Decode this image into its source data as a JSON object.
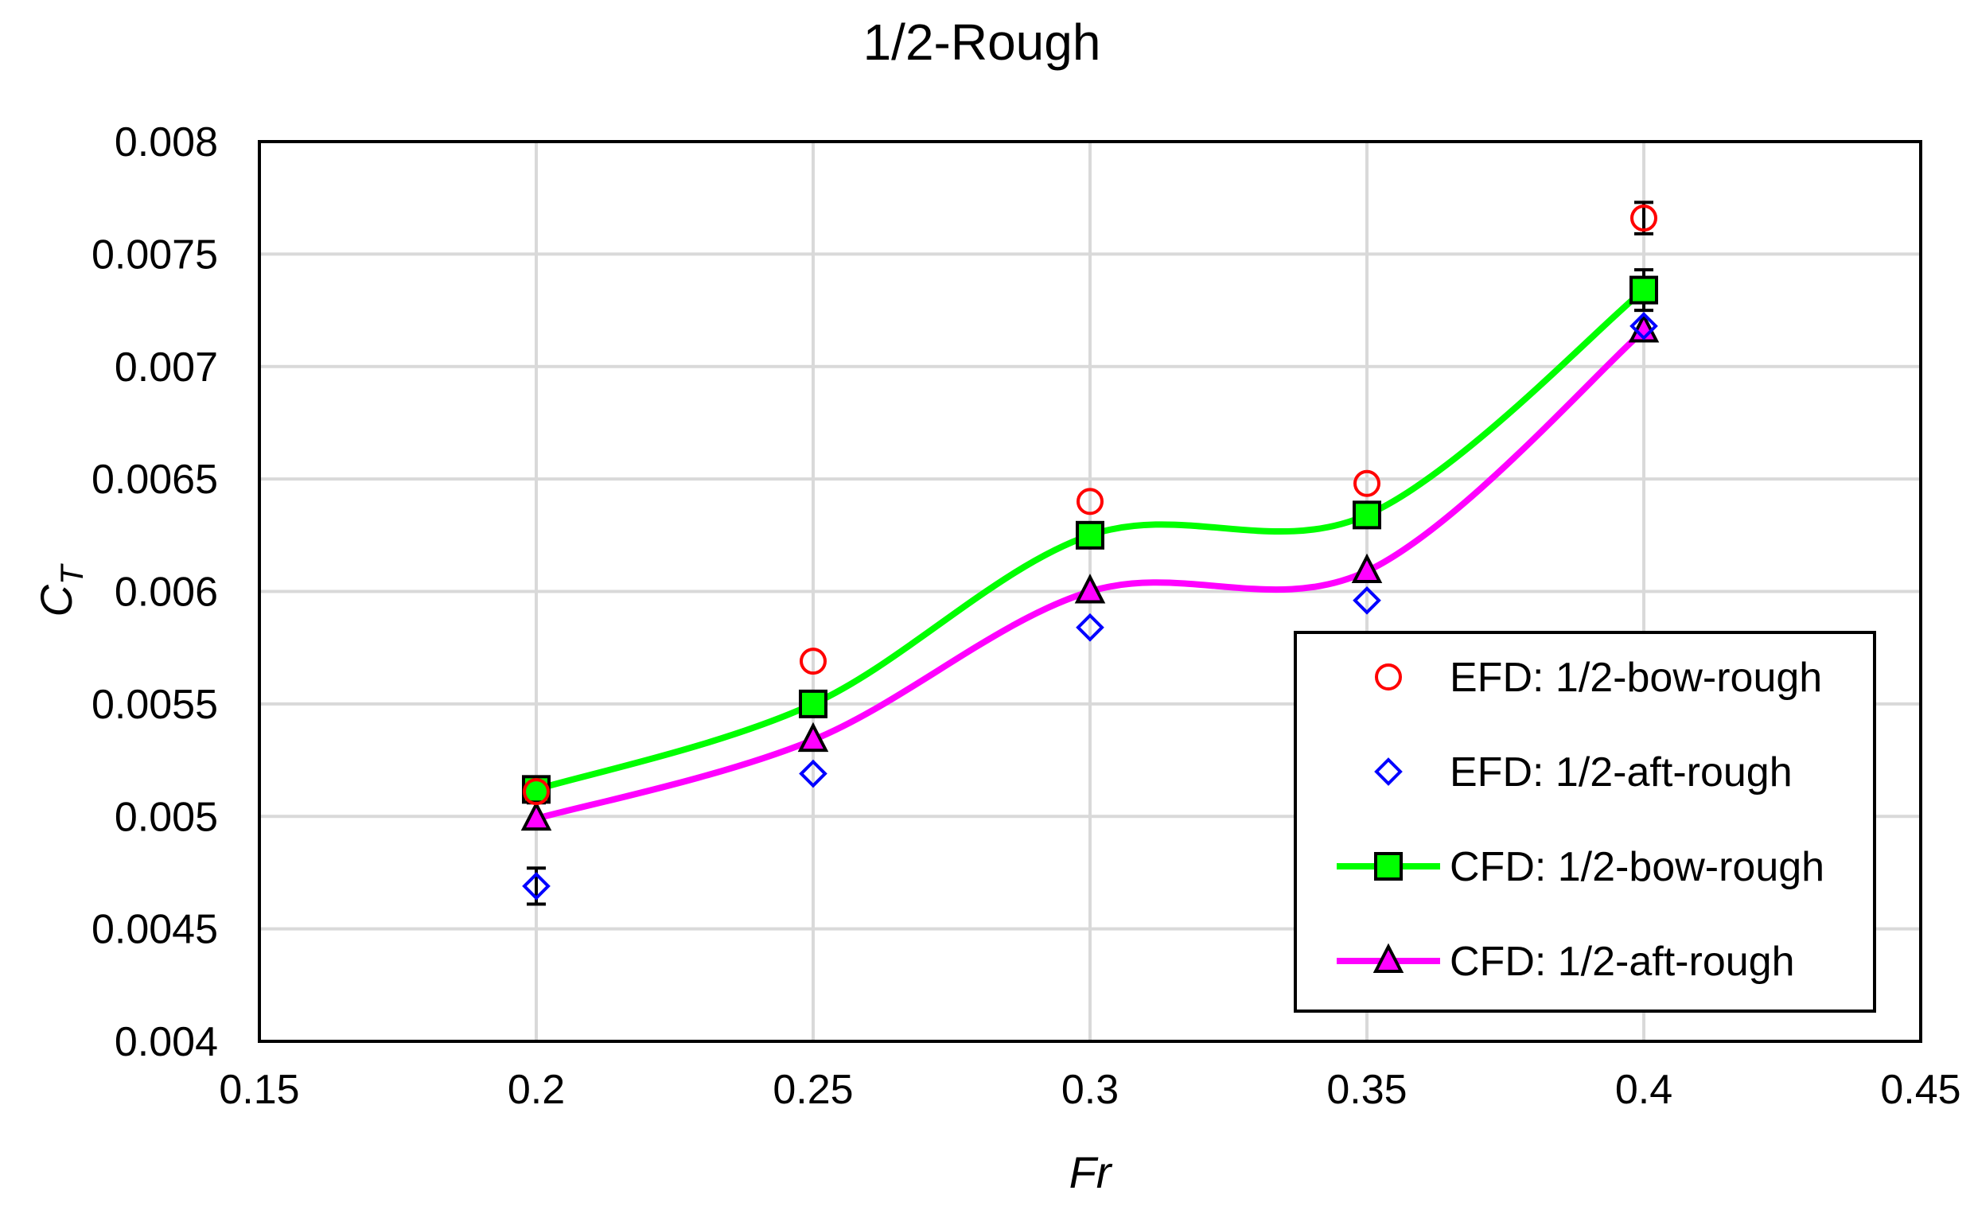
{
  "chart_data": {
    "type": "scatter",
    "title": "1/2-Rough",
    "xlabel": "Fr",
    "ylabel": "C",
    "ylabel_subscript": "T",
    "xlim": [
      0.15,
      0.45
    ],
    "ylim": [
      0.004,
      0.008
    ],
    "xticks": [
      0.15,
      0.2,
      0.25,
      0.3,
      0.35,
      0.4,
      0.45
    ],
    "xtick_labels": [
      "0.15",
      "0.2",
      "0.25",
      "0.3",
      "0.35",
      "0.4",
      "0.45"
    ],
    "yticks": [
      0.004,
      0.0045,
      0.005,
      0.0055,
      0.006,
      0.0065,
      0.007,
      0.0075,
      0.008
    ],
    "ytick_labels": [
      "0.004",
      "0.0045",
      "0.005",
      "0.0055",
      "0.006",
      "0.0065",
      "0.007",
      "0.0075",
      "0.008"
    ],
    "grid": true,
    "legend_position": "bottom-right",
    "series": [
      {
        "name": "EFD: 1/2-bow-rough",
        "marker": "circle-open",
        "line": false,
        "color": "#ff0000",
        "x": [
          0.2,
          0.25,
          0.3,
          0.35,
          0.4
        ],
        "y": [
          0.00511,
          0.00569,
          0.0064,
          0.00648,
          0.00766
        ],
        "error": [
          5e-05,
          0,
          0,
          0,
          7e-05
        ]
      },
      {
        "name": "EFD: 1/2-aft-rough",
        "marker": "diamond-open",
        "line": false,
        "color": "#0000ff",
        "x": [
          0.2,
          0.25,
          0.3,
          0.35,
          0.4
        ],
        "y": [
          0.00469,
          0.00519,
          0.00584,
          0.00596,
          0.00718
        ],
        "error": [
          8e-05,
          0,
          0,
          0,
          0
        ]
      },
      {
        "name": "CFD: 1/2-bow-rough",
        "marker": "square-filled",
        "line": true,
        "color": "#00ff00",
        "x": [
          0.2,
          0.25,
          0.3,
          0.35,
          0.4
        ],
        "y": [
          0.00512,
          0.0055,
          0.00625,
          0.00634,
          0.00734
        ],
        "error": [
          0,
          0,
          0,
          0,
          9e-05
        ]
      },
      {
        "name": "CFD: 1/2-aft-rough",
        "marker": "triangle-filled",
        "line": true,
        "color": "#ff00ff",
        "x": [
          0.2,
          0.25,
          0.3,
          0.35,
          0.4
        ],
        "y": [
          0.00499,
          0.00534,
          0.006,
          0.00609,
          0.00716
        ],
        "error": [
          0,
          0,
          0,
          0,
          0
        ]
      }
    ]
  }
}
